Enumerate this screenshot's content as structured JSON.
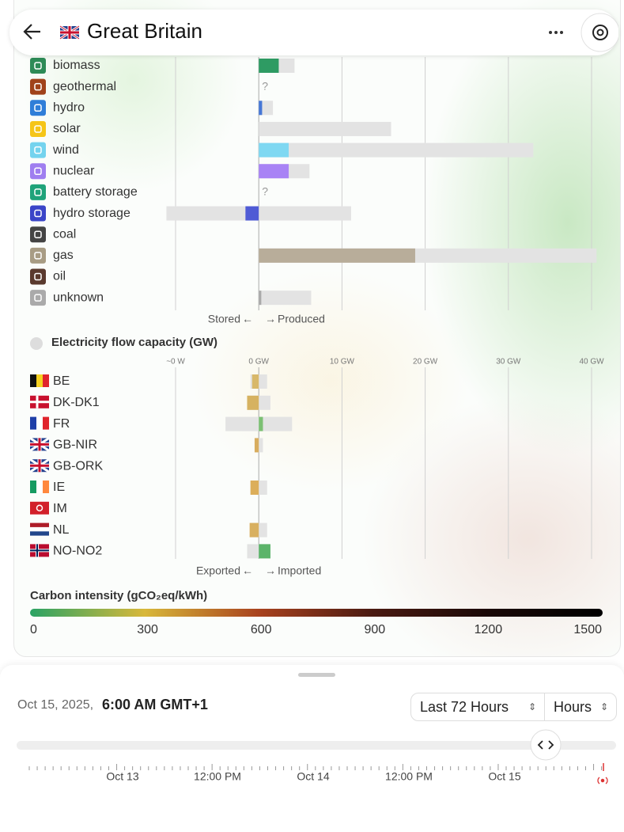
{
  "header": {
    "title": "Great Britain"
  },
  "axis": {
    "xlim": [
      -10,
      40
    ],
    "xticks": [
      {
        "value": -10,
        "label": "~0 W"
      },
      {
        "value": 0,
        "label": "0 GW"
      },
      {
        "value": 10,
        "label": "10 GW"
      },
      {
        "value": 20,
        "label": "20 GW"
      },
      {
        "value": 30,
        "label": "30 GW"
      },
      {
        "value": 40,
        "label": "40 GW"
      }
    ]
  },
  "production": {
    "rows": [
      {
        "name": "biomass",
        "icon": "#2e8b57",
        "color": "#2e9b63",
        "value": 2.4,
        "capacity": [
          0,
          4.3
        ]
      },
      {
        "name": "geothermal",
        "icon": "#a0421a",
        "color": "#c0622e",
        "value": null,
        "value_label": "?",
        "capacity": null
      },
      {
        "name": "hydro",
        "icon": "#2f7ed8",
        "color": "#4677d6",
        "value": 0.4,
        "capacity": [
          0,
          1.7
        ]
      },
      {
        "name": "solar",
        "icon": "#f5c518",
        "color": "#f5c518",
        "value": 0,
        "capacity": [
          0,
          15.9
        ]
      },
      {
        "name": "wind",
        "icon": "#74d3ee",
        "color": "#7fd8f2",
        "value": 3.6,
        "capacity": [
          0,
          33
        ]
      },
      {
        "name": "nuclear",
        "icon": "#9f7ef0",
        "color": "#a883f5",
        "value": 3.6,
        "capacity": [
          0,
          6.1
        ]
      },
      {
        "name": "battery storage",
        "icon": "#1fa37a",
        "color": "#1fa37a",
        "value": null,
        "value_label": "?",
        "capacity": null
      },
      {
        "name": "hydro storage",
        "icon": "#3a45c8",
        "color": "#4f5bd5",
        "value": -1.6,
        "capacity": [
          -11.1,
          11.1
        ]
      },
      {
        "name": "coal",
        "icon": "#444444",
        "color": "#444444",
        "value": 0,
        "capacity": null
      },
      {
        "name": "gas",
        "icon": "#a89c84",
        "color": "#b8ad9a",
        "value": 18.8,
        "capacity": [
          0,
          40.6
        ]
      },
      {
        "name": "oil",
        "icon": "#5a3a2e",
        "color": "#5a3a2e",
        "value": 0,
        "capacity": null
      },
      {
        "name": "unknown",
        "icon": "#aaaaaa",
        "color": "#aaaaaa",
        "value": 0.3,
        "capacity": [
          0,
          6.3
        ]
      }
    ],
    "left_label": "Stored",
    "right_label": "Produced"
  },
  "exchange": {
    "title": "Electricity flow capacity (GW)",
    "rows": [
      {
        "zone": "BE",
        "color": "#d8b86a",
        "value": -0.8,
        "capacity": [
          -1.0,
          1.0
        ]
      },
      {
        "zone": "DK-DK1",
        "color": "#d6b261",
        "value": -1.4,
        "capacity": [
          -1.4,
          1.4
        ]
      },
      {
        "zone": "FR",
        "color": "#7cc073",
        "value": 0.5,
        "capacity": [
          -4,
          4
        ]
      },
      {
        "zone": "GB-NIR",
        "color": "#d8ad5e",
        "value": -0.5,
        "capacity": [
          -0.5,
          0.5
        ]
      },
      {
        "zone": "GB-ORK",
        "color": "#cccccc",
        "value": null,
        "capacity": null
      },
      {
        "zone": "IE",
        "color": "#dcae5a",
        "value": -1.0,
        "capacity": [
          -1.0,
          1.0
        ]
      },
      {
        "zone": "IM",
        "color": "#cccccc",
        "value": null,
        "capacity": null
      },
      {
        "zone": "NL",
        "color": "#d8b060",
        "value": -1.1,
        "capacity": [
          -1.0,
          1.0
        ]
      },
      {
        "zone": "NO-NO2",
        "color": "#5cb46a",
        "value": 1.4,
        "capacity": [
          -1.4,
          1.4
        ]
      }
    ],
    "left_label": "Exported",
    "right_label": "Imported"
  },
  "carbon": {
    "title": "Carbon intensity (gCO₂eq/kWh)",
    "xlim": [
      0,
      1500
    ],
    "xticks": [
      0,
      300,
      600,
      900,
      1200,
      1500
    ]
  },
  "footer": {
    "date": "Oct 15, 2025,",
    "time": "6:00 AM GMT+1",
    "range": "Last 72 Hours",
    "resolution": "Hours",
    "timeline": [
      "Oct 13",
      "12:00 PM",
      "Oct 14",
      "12:00 PM",
      "Oct 15"
    ]
  }
}
